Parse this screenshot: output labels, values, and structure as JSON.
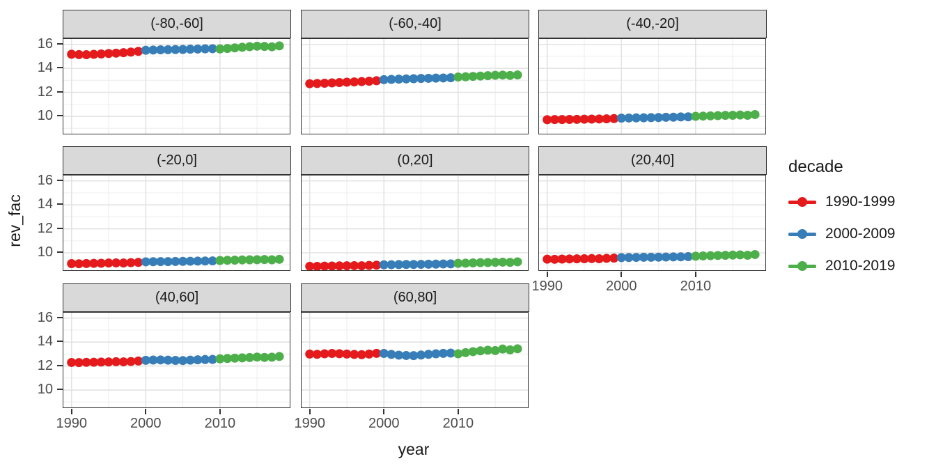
{
  "chart_data": {
    "type": "scatter",
    "title": "",
    "xlabel": "year",
    "ylabel": "rev_fac",
    "grid": "on",
    "x_domain": [
      1988.9,
      2019.4
    ],
    "y_domain": [
      8.55,
      16.45
    ],
    "x_ticks": [
      1990,
      2000,
      2010
    ],
    "x_minor_ticks": [
      1995,
      2005,
      2015
    ],
    "y_ticks": [
      10,
      12,
      14,
      16
    ],
    "y_minor_ticks": [
      9,
      11,
      13,
      15
    ],
    "years": [
      1990,
      1991,
      1992,
      1993,
      1994,
      1995,
      1996,
      1997,
      1998,
      1999,
      2000,
      2001,
      2002,
      2003,
      2004,
      2005,
      2006,
      2007,
      2008,
      2009,
      2010,
      2011,
      2012,
      2013,
      2014,
      2015,
      2016,
      2017,
      2018
    ],
    "legend": {
      "title": "decade",
      "position": "right",
      "entries": [
        {
          "label": "1990-1999",
          "color": "#E41A1C",
          "year_range": [
            1990,
            1999
          ]
        },
        {
          "label": "2000-2009",
          "color": "#377EB8",
          "year_range": [
            2000,
            2009
          ]
        },
        {
          "label": "2010-2019",
          "color": "#4DAF4A",
          "year_range": [
            2010,
            2019
          ]
        }
      ]
    },
    "facets": [
      {
        "label": "(-80,-60]",
        "values": [
          15.18,
          15.15,
          15.14,
          15.17,
          15.2,
          15.24,
          15.27,
          15.31,
          15.36,
          15.42,
          15.51,
          15.53,
          15.55,
          15.56,
          15.57,
          15.58,
          15.6,
          15.61,
          15.63,
          15.64,
          15.62,
          15.66,
          15.71,
          15.76,
          15.81,
          15.85,
          15.83,
          15.8,
          15.88
        ]
      },
      {
        "label": "(-60,-40]",
        "values": [
          12.72,
          12.74,
          12.76,
          12.79,
          12.82,
          12.85,
          12.87,
          12.9,
          12.93,
          12.97,
          13.06,
          13.08,
          13.1,
          13.12,
          13.14,
          13.16,
          13.17,
          13.19,
          13.2,
          13.22,
          13.28,
          13.3,
          13.33,
          13.36,
          13.39,
          13.42,
          13.44,
          13.41,
          13.45
        ]
      },
      {
        "label": "(-40,-20]",
        "values": [
          9.72,
          9.73,
          9.73,
          9.74,
          9.75,
          9.76,
          9.77,
          9.78,
          9.79,
          9.81,
          9.85,
          9.86,
          9.87,
          9.88,
          9.89,
          9.9,
          9.92,
          9.93,
          9.95,
          9.96,
          10.0,
          10.02,
          10.04,
          10.06,
          10.08,
          10.09,
          10.11,
          10.09,
          10.15
        ]
      },
      {
        "label": "(-20,0]",
        "values": [
          9.1,
          9.09,
          9.11,
          9.12,
          9.13,
          9.15,
          9.16,
          9.15,
          9.18,
          9.2,
          9.25,
          9.26,
          9.27,
          9.27,
          9.28,
          9.29,
          9.3,
          9.31,
          9.32,
          9.33,
          9.36,
          9.38,
          9.39,
          9.41,
          9.42,
          9.43,
          9.44,
          9.42,
          9.46
        ]
      },
      {
        "label": "(0,20]",
        "values": [
          8.88,
          8.87,
          8.89,
          8.9,
          8.91,
          8.92,
          8.93,
          8.92,
          8.95,
          8.97,
          9.0,
          9.01,
          9.02,
          9.03,
          9.03,
          9.04,
          9.05,
          9.06,
          9.07,
          9.08,
          9.12,
          9.14,
          9.16,
          9.18,
          9.19,
          9.21,
          9.22,
          9.2,
          9.25
        ]
      },
      {
        "label": "(20,40]",
        "values": [
          9.47,
          9.46,
          9.48,
          9.49,
          9.5,
          9.51,
          9.52,
          9.51,
          9.54,
          9.56,
          9.6,
          9.61,
          9.62,
          9.63,
          9.63,
          9.64,
          9.65,
          9.66,
          9.67,
          9.68,
          9.72,
          9.74,
          9.76,
          9.78,
          9.79,
          9.81,
          9.83,
          9.8,
          9.86
        ]
      },
      {
        "label": "(40,60]",
        "values": [
          12.3,
          12.29,
          12.31,
          12.32,
          12.33,
          12.34,
          12.36,
          12.35,
          12.38,
          12.42,
          12.48,
          12.5,
          12.51,
          12.49,
          12.47,
          12.46,
          12.49,
          12.52,
          12.54,
          12.55,
          12.6,
          12.63,
          12.66,
          12.68,
          12.71,
          12.75,
          12.72,
          12.74,
          12.8
        ]
      },
      {
        "label": "(60,80]",
        "values": [
          13.0,
          12.98,
          13.02,
          13.05,
          13.03,
          13.0,
          12.97,
          12.95,
          13.0,
          13.06,
          13.05,
          12.97,
          12.91,
          12.88,
          12.87,
          12.92,
          12.98,
          13.02,
          13.06,
          13.08,
          13.02,
          13.12,
          13.2,
          13.27,
          13.32,
          13.29,
          13.42,
          13.35,
          13.44
        ]
      }
    ],
    "style": {
      "strip_bg": "#d9d9d9",
      "panel_border": "#333333",
      "grid_major": "#e3e3e3",
      "grid_minor": "#f0f0f0",
      "tick_text": "#4d4d4d",
      "text": "#1a1a1a",
      "point_radius": 6.5
    }
  }
}
